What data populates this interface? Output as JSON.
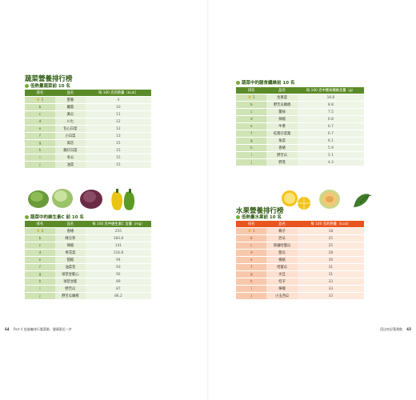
{
  "left_page": {
    "main_title": "蔬菜營養排行榜",
    "tables": [
      {
        "subtitle": "低熱量蔬菜前 10 名",
        "headers": [
          "排名",
          "品名",
          "每 100 克的熱量（kcal）"
        ],
        "rows": [
          {
            "rank": "1",
            "name": "蘆薈",
            "value": "4"
          },
          {
            "rank": "b",
            "name": "蘿蔔",
            "value": "10"
          },
          {
            "rank": "c",
            "name": "黃瓜",
            "value": "11"
          },
          {
            "rank": "d",
            "name": "川七",
            "value": "12"
          },
          {
            "rank": "e",
            "name": "包心白菜",
            "value": "12"
          },
          {
            "rank": "f",
            "name": "小白菜",
            "value": "13"
          },
          {
            "rank": "g",
            "name": "萵苣",
            "value": "15"
          },
          {
            "rank": "h",
            "name": "麵仔白菜",
            "value": "15"
          },
          {
            "rank": "i",
            "name": "冬瓜",
            "value": "15"
          },
          {
            "rank": "j",
            "name": "油菜",
            "value": "15"
          }
        ]
      },
      {
        "subtitle": "蔬菜中的維生素C 前 10 名",
        "headers": [
          "排名",
          "品名",
          "每 100 克中維生素C 含量（mg）"
        ],
        "rows": [
          {
            "rank": "1",
            "name": "香椿",
            "value": "255"
          },
          {
            "rank": "b",
            "name": "綠豆芽",
            "value": "183.8"
          },
          {
            "rank": "c",
            "name": "辣椒",
            "value": "141"
          },
          {
            "rank": "d",
            "name": "青花菜",
            "value": "116.8"
          },
          {
            "rank": "e",
            "name": "甜椒",
            "value": "94"
          },
          {
            "rank": "f",
            "name": "油菜花",
            "value": "93"
          },
          {
            "rank": "g",
            "name": "球莖甘藍心",
            "value": "92"
          },
          {
            "rank": "h",
            "name": "球莖甘藍",
            "value": "89"
          },
          {
            "rank": "i",
            "name": "野苦瓜",
            "value": "87"
          },
          {
            "rank": "j",
            "name": "野苦瓜嫩梢",
            "value": "86.2"
          }
        ]
      }
    ],
    "footer": {
      "page_no": "64",
      "text": "Part 4 從營養排行看蔬果，健康更近一步"
    }
  },
  "right_page": {
    "tables": [
      {
        "subtitle": "蔬菜中的膳食纖維前 10 名",
        "headers": [
          "排名",
          "品名",
          "每 100 克中膳食纖維含量（g）"
        ],
        "rows": [
          {
            "rank": "1",
            "name": "金東菜",
            "value": "16.8"
          },
          {
            "rank": "b",
            "name": "野苦瓜嫩梢",
            "value": "8.8"
          },
          {
            "rank": "c",
            "name": "薑絲",
            "value": "7.5"
          },
          {
            "rank": "d",
            "name": "辣椒",
            "value": "6.8"
          },
          {
            "rank": "e",
            "name": "牛蒡",
            "value": "6.7"
          },
          {
            "rank": "f",
            "name": "紅鳳仔菜葉",
            "value": "6.7"
          },
          {
            "rank": "g",
            "name": "角菜",
            "value": "6.1"
          },
          {
            "rank": "h",
            "name": "香椿",
            "value": "5.9"
          },
          {
            "rank": "i",
            "name": "野苦瓜",
            "value": "5.1"
          },
          {
            "rank": "j",
            "name": "野莧",
            "value": "4.3"
          }
        ]
      }
    ],
    "main_title": "水果營養排行榜",
    "fruit_table": {
      "subtitle": "低熱量水果前 10 名",
      "headers": [
        "排名",
        "品名",
        "每 100 克的熱量（kcal）"
      ],
      "rows": [
        {
          "rank": "1",
          "name": "椰子",
          "value": "18"
        },
        {
          "rank": "b",
          "name": "西瓜",
          "value": "25"
        },
        {
          "rank": "c",
          "name": "新疆哈蜜瓜",
          "value": "25"
        },
        {
          "rank": "d",
          "name": "甜瓜",
          "value": "28"
        },
        {
          "rank": "e",
          "name": "楊桃",
          "value": "30"
        },
        {
          "rank": "f",
          "name": "哈蜜瓜",
          "value": "31"
        },
        {
          "rank": "g",
          "name": "文旦",
          "value": "31"
        },
        {
          "rank": "h",
          "name": "桔子",
          "value": "33"
        },
        {
          "rank": "i",
          "name": "檸檬",
          "value": "33"
        },
        {
          "rank": "j",
          "name": "小玉西瓜",
          "value": "33"
        }
      ]
    },
    "footer": {
      "page_no": "65",
      "text": "搭出吃好蔬果飲"
    }
  },
  "icons": {
    "rank1": "crown-icon",
    "bullet": "leaf-dot-icon"
  },
  "colors": {
    "green_header": "#5b8b28",
    "orange_header": "#e8551f",
    "title_green": "#2e5a12"
  }
}
